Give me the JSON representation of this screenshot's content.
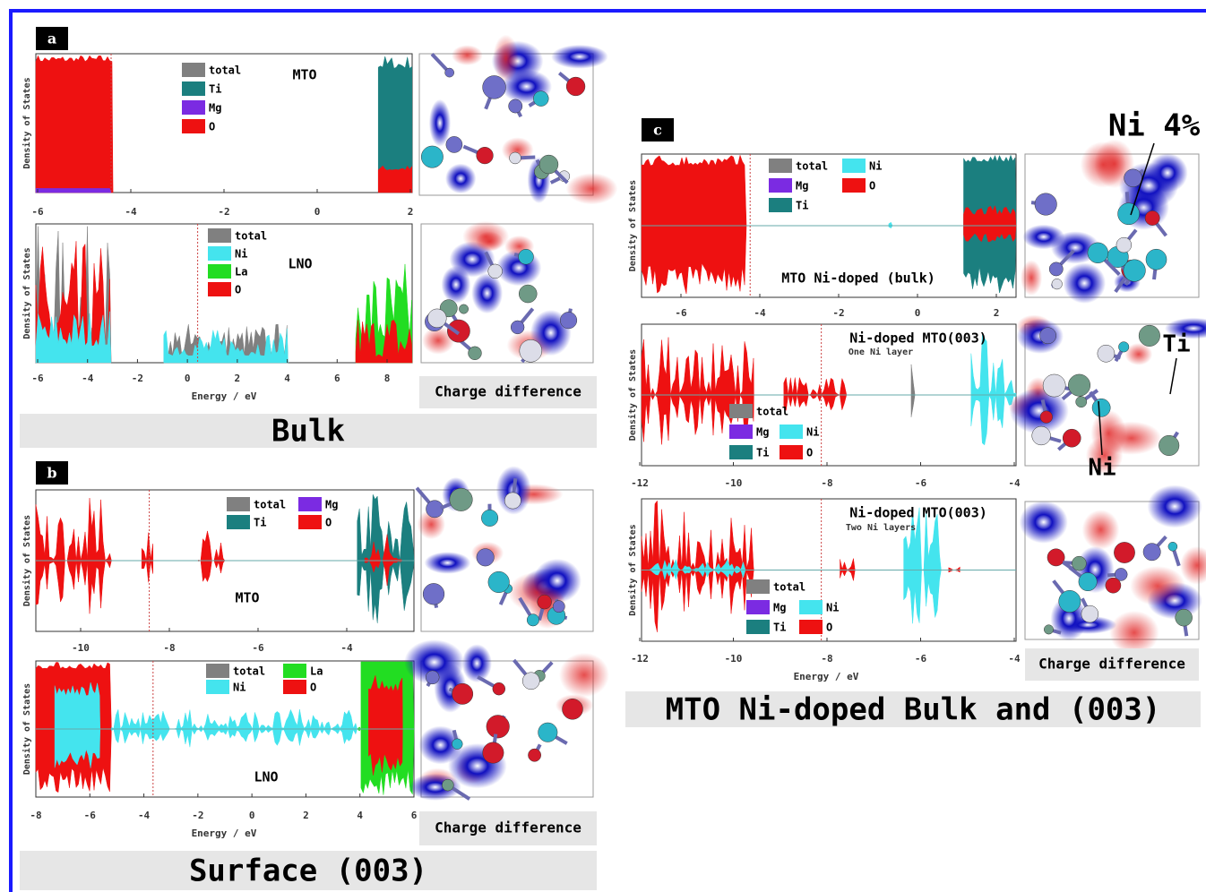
{
  "panels": [
    {
      "label": "a",
      "plots": [
        {
          "title": "MTO",
          "y_label": "Density of States",
          "x_ticks": [
            "-6",
            "-4",
            "-2",
            "0",
            "2"
          ],
          "legend": [
            {
              "name": "total",
              "color": "#808080"
            },
            {
              "name": "Ti",
              "color": "#1b7f7f"
            },
            {
              "name": "Mg",
              "color": "#7b2be2"
            },
            {
              "name": "O",
              "color": "#ee1111"
            }
          ]
        },
        {
          "title": "LNO",
          "y_label": "Density of States",
          "x_ticks": [
            "-6",
            "-4",
            "-2",
            "0",
            "2",
            "4",
            "6",
            "8"
          ],
          "x_label": "Energy / eV",
          "legend": [
            {
              "name": "total",
              "color": "#808080"
            },
            {
              "name": "Ni",
              "color": "#44e4ee"
            },
            {
              "name": "La",
              "color": "#22dd22"
            },
            {
              "name": "O",
              "color": "#ee1111"
            }
          ]
        }
      ],
      "image_caption": "Charge difference",
      "caption": "Bulk"
    },
    {
      "label": "b",
      "plots": [
        {
          "title": "MTO",
          "y_label": "Density of States",
          "x_ticks": [
            "-10",
            "-8",
            "-6",
            "-4"
          ],
          "legend": [
            {
              "name": "total",
              "color": "#808080"
            },
            {
              "name": "Ti",
              "color": "#1b7f7f"
            },
            {
              "name": "Mg",
              "color": "#7b2be2"
            },
            {
              "name": "O",
              "color": "#ee1111"
            }
          ]
        },
        {
          "title": "LNO",
          "y_label": "Density of States",
          "x_ticks": [
            "-8",
            "-6",
            "-4",
            "-2",
            "0",
            "2",
            "4",
            "6"
          ],
          "x_label": "Energy / eV",
          "legend": [
            {
              "name": "total",
              "color": "#808080"
            },
            {
              "name": "Ni",
              "color": "#44e4ee"
            },
            {
              "name": "La",
              "color": "#22dd22"
            },
            {
              "name": "O",
              "color": "#ee1111"
            }
          ]
        }
      ],
      "image_caption": "Charge difference",
      "caption": "Surface (003)"
    },
    {
      "label": "c",
      "annotation": "Ni 4%",
      "plots": [
        {
          "title": "MTO Ni-doped (bulk)",
          "y_label": "Density of States",
          "x_ticks": [
            "-6",
            "-4",
            "-2",
            "0",
            "2"
          ],
          "legend": [
            {
              "name": "total",
              "color": "#808080"
            },
            {
              "name": "Mg",
              "color": "#7b2be2"
            },
            {
              "name": "Ti",
              "color": "#1b7f7f"
            },
            {
              "name": "Ni",
              "color": "#44e4ee"
            },
            {
              "name": "O",
              "color": "#ee1111"
            }
          ]
        },
        {
          "title": "Ni-doped MTO(003)",
          "subtitle": "One Ni layer",
          "y_label": "Density of States",
          "x_ticks": [
            "-12",
            "-10",
            "-8",
            "-6",
            "-4"
          ],
          "legend": [
            {
              "name": "total",
              "color": "#808080"
            },
            {
              "name": "Mg",
              "color": "#7b2be2"
            },
            {
              "name": "Ti",
              "color": "#1b7f7f"
            },
            {
              "name": "Ni",
              "color": "#44e4ee"
            },
            {
              "name": "O",
              "color": "#ee1111"
            }
          ]
        },
        {
          "title": "Ni-doped MTO(003)",
          "subtitle": "Two Ni layers",
          "y_label": "Density of States",
          "x_ticks": [
            "-12",
            "-10",
            "-8",
            "-6",
            "-4"
          ],
          "x_label": "Energy / eV",
          "legend": [
            {
              "name": "total",
              "color": "#808080"
            },
            {
              "name": "Mg",
              "color": "#7b2be2"
            },
            {
              "name": "Ti",
              "color": "#1b7f7f"
            },
            {
              "name": "Ni",
              "color": "#44e4ee"
            },
            {
              "name": "O",
              "color": "#ee1111"
            }
          ]
        }
      ],
      "image_labels": [
        "Ti",
        "Ni"
      ],
      "image_caption": "Charge difference",
      "caption": "MTO Ni-doped Bulk and (003)"
    }
  ]
}
